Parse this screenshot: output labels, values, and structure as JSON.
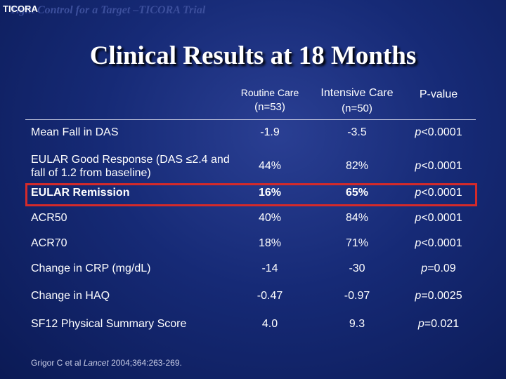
{
  "corner": {
    "label": "TICORA",
    "ghost_text": "Tight Control for a Target –TICORA Trial"
  },
  "title": "Clinical Results at 18 Months",
  "columns": {
    "routine": {
      "line1": "Routine Care",
      "line2": "(n=53)"
    },
    "intensive": {
      "line1": "Intensive Care",
      "line2": "(n=50)"
    },
    "pvalue": {
      "line1": "P-value"
    }
  },
  "rows": [
    {
      "label": "Mean Fall in DAS",
      "routine": "-1.9",
      "intensive": "-3.5",
      "p_prefix": "p",
      "p_value": "<0.0001"
    },
    {
      "label": "EULAR Good Response (DAS ≤2.4 and fall of 1.2 from baseline)",
      "routine": "44%",
      "intensive": "82%",
      "p_prefix": "p",
      "p_value": "<0.0001"
    },
    {
      "label": "EULAR Remission",
      "routine": "16%",
      "intensive": "65%",
      "p_prefix": "p",
      "p_value": "<0.0001"
    },
    {
      "label": "ACR50",
      "routine": "40%",
      "intensive": "84%",
      "p_prefix": "p",
      "p_value": "<0.0001"
    },
    {
      "label": "ACR70",
      "routine": "18%",
      "intensive": "71%",
      "p_prefix": "p",
      "p_value": "<0.0001"
    },
    {
      "label": "Change in CRP (mg/dL)",
      "routine": "-14",
      "intensive": "-30",
      "p_prefix": "p",
      "p_value": "=0.09"
    },
    {
      "label": "Change in HAQ",
      "routine": "-0.47",
      "intensive": "-0.97",
      "p_prefix": "p",
      "p_value": "=0.0025"
    },
    {
      "label": "SF12 Physical Summary Score",
      "routine": "4.0",
      "intensive": "9.3",
      "p_prefix": "p",
      "p_value": "=0.021"
    }
  ],
  "citation": {
    "authors": "Grigor C et al ",
    "journal": "Lancet",
    "details": " 2004;364:263-269."
  },
  "colors": {
    "background": "#162a76",
    "highlight_border": "#d42a2a",
    "text": "#ffffff"
  }
}
